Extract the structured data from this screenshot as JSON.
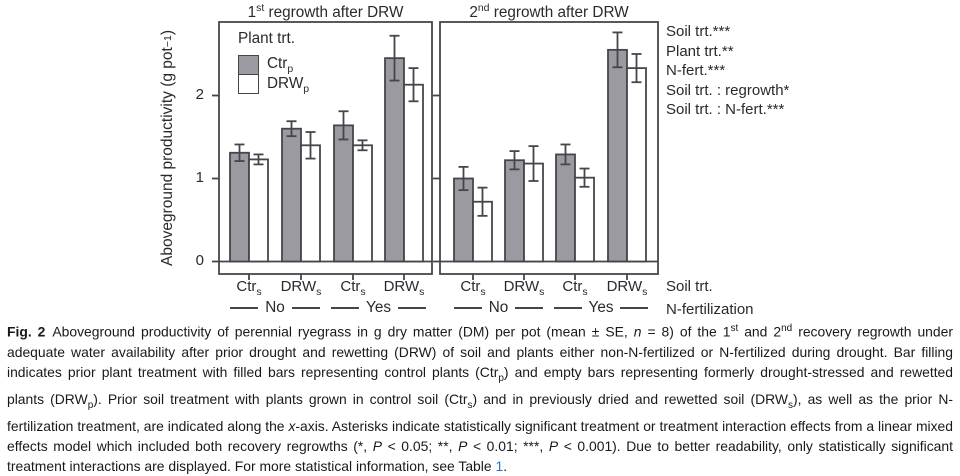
{
  "colors": {
    "bar_gray": "#9a9aa0",
    "bar_white": "#ffffff",
    "stroke": "#45454c",
    "text": "#2a2a2e",
    "link_blue": "#2f6bd8"
  },
  "figure": {
    "ylabel_segments": [
      {
        "t": "Aboveground productivity (g pot"
      },
      {
        "t": "−1",
        "s": "sup"
      },
      {
        "t": ")"
      }
    ],
    "legend": {
      "title": "Plant trt.",
      "items": [
        {
          "segments": [
            {
              "t": "Ctr"
            },
            {
              "t": "p",
              "s": "sub"
            }
          ],
          "fill": "#9a9aa0"
        },
        {
          "segments": [
            {
              "t": "DRW"
            },
            {
              "t": "p",
              "s": "sub"
            }
          ],
          "fill": "#ffffff"
        }
      ]
    },
    "categories_segments": [
      [
        {
          "t": "Ctr"
        },
        {
          "t": "s",
          "s": "sub"
        }
      ],
      [
        {
          "t": "DRW"
        },
        {
          "t": "s",
          "s": "sub"
        }
      ],
      [
        {
          "t": "Ctr"
        },
        {
          "t": "s",
          "s": "sub"
        }
      ],
      [
        {
          "t": "DRW"
        },
        {
          "t": "s",
          "s": "sub"
        }
      ]
    ],
    "group_labels": [
      "No",
      "Yes"
    ],
    "annotations": [
      "Soil trt.***",
      "Plant trt.**",
      "N-fert.***",
      "Soil trt. : regrowth*",
      "Soil trt. : N-fert.***"
    ],
    "axis_row_labels": [
      "Soil trt.",
      "N-fertilization"
    ]
  },
  "chart_data": {
    "type": "bar",
    "ylabel": "Aboveground productivity (g pot^-1)",
    "yticks": [
      0,
      1,
      2
    ],
    "ylim": [
      0,
      2.89
    ],
    "error_type": "SE",
    "grid": false,
    "legend_position": "upper-left panel 1",
    "panels": [
      {
        "title": "1st regrowth after DRW",
        "title_segments": [
          {
            "t": "1"
          },
          {
            "t": "st",
            "s": "sup"
          },
          {
            "t": " regrowth after DRW"
          }
        ],
        "categories": [
          "No Ctr_s",
          "No DRW_s",
          "Yes Ctr_s",
          "Yes DRW_s"
        ],
        "series": [
          {
            "name": "Ctr_p",
            "fill": "#9a9aa0",
            "values": [
              1.31,
              1.6,
              1.64,
              2.45
            ],
            "se": [
              0.1,
              0.09,
              0.17,
              0.27
            ]
          },
          {
            "name": "DRW_p",
            "fill": "#ffffff",
            "values": [
              1.23,
              1.4,
              1.4,
              2.13
            ],
            "se": [
              0.06,
              0.16,
              0.06,
              0.2
            ]
          }
        ]
      },
      {
        "title": "2nd regrowth after DRW",
        "title_segments": [
          {
            "t": "2"
          },
          {
            "t": "nd",
            "s": "sup"
          },
          {
            "t": " regrowth after DRW"
          }
        ],
        "categories": [
          "No Ctr_s",
          "No DRW_s",
          "Yes Ctr_s",
          "Yes DRW_s"
        ],
        "series": [
          {
            "name": "Ctr_p",
            "fill": "#9a9aa0",
            "values": [
              1.0,
              1.22,
              1.29,
              2.55
            ],
            "se": [
              0.14,
              0.11,
              0.12,
              0.21
            ]
          },
          {
            "name": "DRW_p",
            "fill": "#ffffff",
            "values": [
              0.72,
              1.18,
              1.01,
              2.33
            ],
            "se": [
              0.17,
              0.21,
              0.11,
              0.17
            ]
          }
        ]
      }
    ]
  },
  "caption": {
    "segments": [
      {
        "t": "Fig. 2",
        "s": "b"
      },
      {
        "t": " Aboveground productivity of perennial ryegrass in g dry matter (DM) per pot (mean ± SE, "
      },
      {
        "t": "n",
        "s": "i"
      },
      {
        "t": " = 8) of the 1"
      },
      {
        "t": "st",
        "s": "sup"
      },
      {
        "t": " and 2"
      },
      {
        "t": "nd",
        "s": "sup"
      },
      {
        "t": " recovery regrowth under adequate water availability after prior drought and rewetting (DRW) of soil and plants either non-N-fertilized or N-fertilized during drought. Bar filling indicates prior plant treatment with filled bars representing control plants (Ctr"
      },
      {
        "t": "p",
        "s": "sub"
      },
      {
        "t": ") and empty bars representing formerly drought-stressed and rewetted plants (DRW"
      },
      {
        "t": "p",
        "s": "sub"
      },
      {
        "t": "). Prior soil treatment with plants grown in control soil (Ctr"
      },
      {
        "t": "s",
        "s": "sub"
      },
      {
        "t": ") and in previously dried and rewetted soil (DRW"
      },
      {
        "t": "s",
        "s": "sub"
      },
      {
        "t": "), as well as the prior N-fertilization treatment, are indicated along the "
      },
      {
        "t": "x",
        "s": "i"
      },
      {
        "t": "-axis. Asterisks indicate statistically significant treatment or treatment interaction effects from a linear mixed effects model which included both recovery regrowths (*, "
      },
      {
        "t": "P",
        "s": "i"
      },
      {
        "t": " < 0.05; **, "
      },
      {
        "t": "P",
        "s": "i"
      },
      {
        "t": " < 0.01; ***, "
      },
      {
        "t": "P",
        "s": "i"
      },
      {
        "t": " < 0.001). Due to better readability, only statistically significant treatment interactions are displayed. For more statistical information, see Table "
      },
      {
        "t": "1",
        "s": "link"
      },
      {
        "t": "."
      }
    ]
  }
}
